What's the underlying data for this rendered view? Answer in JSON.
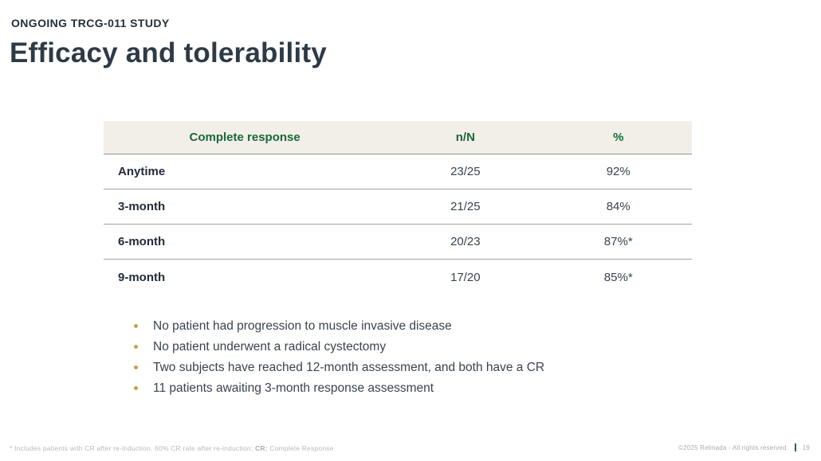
{
  "slide": {
    "eyebrow": "ONGOING TRCG-011 STUDY",
    "title": "Efficacy and tolerability"
  },
  "table": {
    "headers": [
      "Complete response",
      "n/N",
      "%"
    ],
    "rows": [
      {
        "label": "Anytime",
        "n_n": "23/25",
        "pct": "92%"
      },
      {
        "label": "3-month",
        "n_n": "21/25",
        "pct": "84%"
      },
      {
        "label": "6-month",
        "n_n": "20/23",
        "pct": "87%*"
      },
      {
        "label": "9-month",
        "n_n": "17/20",
        "pct": "85%*"
      }
    ]
  },
  "bullets": [
    "No patient had progression to muscle invasive disease",
    "No patient underwent a radical cystectomy",
    "Two subjects have reached 12-month assessment, and both have a CR",
    "11 patients awaiting 3-month response assessment"
  ],
  "footer": {
    "footnote_prefix": "* Includes patients with CR after re-induction. 60% CR rate after re-induction; ",
    "footnote_bold": "CR:",
    "footnote_suffix": " Complete Response",
    "copyright": "©2025 Relmada - All rights reserved",
    "page_number": "19"
  },
  "colors": {
    "title_text": "#2e3a45",
    "table_header_bg": "#f2efe8",
    "table_header_text": "#17693a",
    "row_separator": "#9ea3a7",
    "bullet_dot": "#c79e5a",
    "body_text": "#3a434e",
    "footer_text": "#a9adad",
    "footer_separator": "#1d6f3e"
  }
}
